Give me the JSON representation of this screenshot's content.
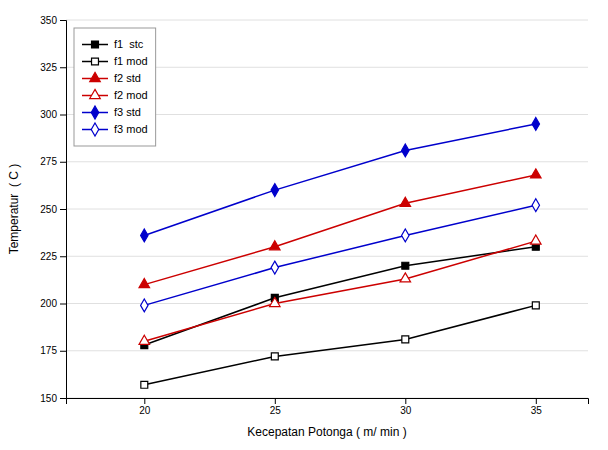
{
  "chart_data": {
    "type": "line",
    "xlabel": "Kecepatan Potonga ( m/ min )",
    "ylabel": "Temperatur  ( C )",
    "x": [
      20,
      25,
      30,
      35
    ],
    "series": [
      {
        "name": "f1  stc",
        "color": "#000000",
        "marker": "square",
        "values": [
          178,
          203,
          220,
          230
        ]
      },
      {
        "name": "f1 mod",
        "color": "#000000",
        "marker": "square-open",
        "values": [
          157,
          172,
          181,
          199
        ]
      },
      {
        "name": "f2 std",
        "color": "#cc0000",
        "marker": "triangle-up",
        "values": [
          210,
          230,
          253,
          268
        ]
      },
      {
        "name": "f2 mod",
        "color": "#cc0000",
        "marker": "triangle-up-open",
        "values": [
          180,
          200,
          213,
          233
        ]
      },
      {
        "name": "f3 std",
        "color": "#0000cc",
        "marker": "diamond",
        "values": [
          236,
          260,
          281,
          295
        ]
      },
      {
        "name": "f3 mod",
        "color": "#0000cc",
        "marker": "diamond-open",
        "values": [
          199,
          219,
          236,
          252
        ]
      }
    ],
    "xlim": [
      17,
      37
    ],
    "ylim": [
      150,
      350
    ],
    "xticks": [
      20,
      25,
      30,
      35
    ],
    "yticks": [
      150,
      175,
      200,
      225,
      250,
      275,
      300,
      325,
      350
    ],
    "grid": "y",
    "legend": "upper left"
  }
}
